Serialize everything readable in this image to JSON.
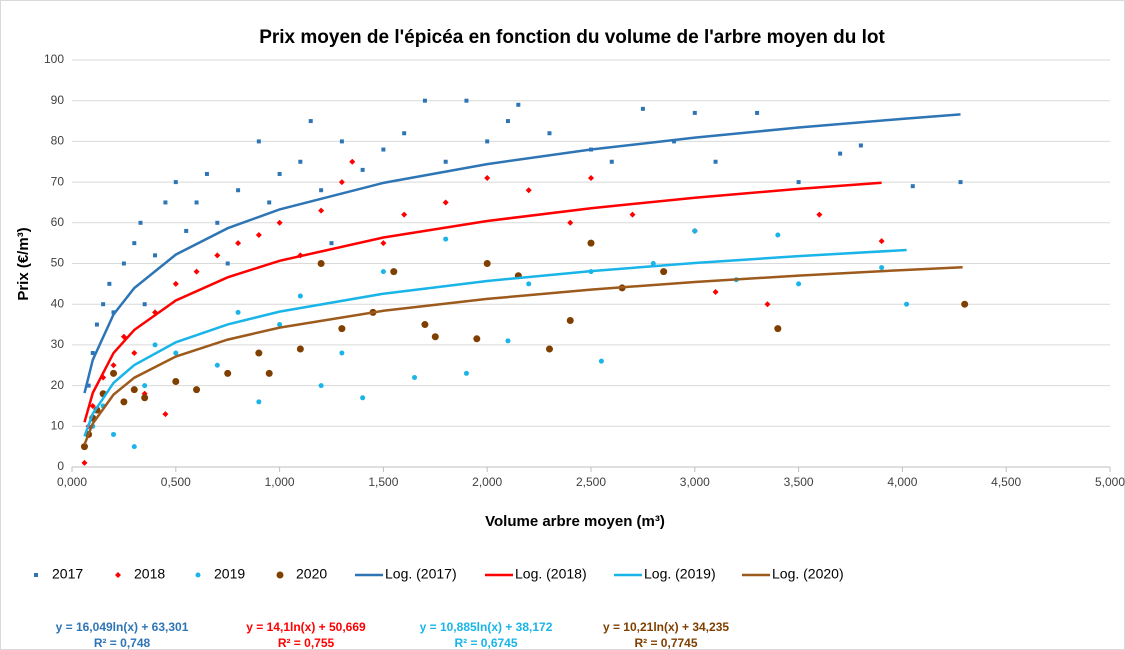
{
  "chart_data": {
    "type": "scatter",
    "title": "Prix moyen de l'épicéa en fonction du volume de l'arbre moyen du lot",
    "xlabel": "Volume arbre moyen (m³)",
    "ylabel": "Prix (€/m³)",
    "xlim": [
      0,
      5
    ],
    "xticks": [
      {
        "value": 0,
        "label": "0,000"
      },
      {
        "value": 0.5,
        "label": "0,500"
      },
      {
        "value": 1,
        "label": "1,000"
      },
      {
        "value": 1.5,
        "label": "1,500"
      },
      {
        "value": 2,
        "label": "2,000"
      },
      {
        "value": 2.5,
        "label": "2,500"
      },
      {
        "value": 3,
        "label": "3,000"
      },
      {
        "value": 3.5,
        "label": "3,500"
      },
      {
        "value": 4,
        "label": "4,000"
      },
      {
        "value": 4.5,
        "label": "4,500"
      },
      {
        "value": 5,
        "label": "5,000"
      }
    ],
    "ylim": [
      0,
      100
    ],
    "yticks": [
      0,
      10,
      20,
      30,
      40,
      50,
      60,
      70,
      80,
      90,
      100
    ],
    "grid": true,
    "legend": "bottom",
    "series": [
      {
        "name": "2017",
        "type": "scatter",
        "marker": "square",
        "color": "#2e75b6",
        "x": [
          0.08,
          0.1,
          0.12,
          0.15,
          0.18,
          0.2,
          0.25,
          0.3,
          0.33,
          0.4,
          0.45,
          0.5,
          0.55,
          0.6,
          0.65,
          0.7,
          0.8,
          0.9,
          0.95,
          1.0,
          1.1,
          1.15,
          1.2,
          1.3,
          1.4,
          1.5,
          1.6,
          1.7,
          1.8,
          1.9,
          2.0,
          2.1,
          2.15,
          2.3,
          2.5,
          2.6,
          2.75,
          2.9,
          3.0,
          3.1,
          3.3,
          3.5,
          3.7,
          3.8,
          4.05,
          4.28,
          1.25,
          0.35,
          0.75
        ],
        "values": [
          20,
          28,
          35,
          40,
          45,
          38,
          50,
          55,
          60,
          52,
          65,
          70,
          58,
          65,
          72,
          60,
          68,
          80,
          65,
          72,
          75,
          85,
          68,
          80,
          73,
          78,
          82,
          90,
          75,
          90,
          80,
          85,
          89,
          82,
          78,
          75,
          88,
          80,
          87,
          75,
          87,
          70,
          77,
          79,
          69,
          70,
          55,
          40,
          50
        ]
      },
      {
        "name": "2018",
        "type": "scatter",
        "marker": "diamond",
        "color": "#ff0000",
        "x": [
          0.06,
          0.08,
          0.1,
          0.15,
          0.2,
          0.25,
          0.3,
          0.35,
          0.4,
          0.45,
          0.5,
          0.6,
          0.7,
          0.8,
          0.9,
          1.0,
          1.1,
          1.2,
          1.3,
          1.35,
          1.5,
          1.6,
          1.8,
          2.0,
          2.2,
          2.4,
          2.5,
          2.7,
          3.0,
          3.1,
          3.35,
          3.6,
          3.9
        ],
        "values": [
          1,
          10,
          15,
          22,
          25,
          32,
          28,
          18,
          38,
          13,
          45,
          48,
          52,
          55,
          57,
          60,
          52,
          63,
          70,
          75,
          55,
          62,
          65,
          71,
          68,
          60,
          71,
          62,
          58,
          43,
          40,
          62,
          55.5
        ]
      },
      {
        "name": "2019",
        "type": "scatter",
        "marker": "circle",
        "color": "#19b4e8",
        "x": [
          0.06,
          0.1,
          0.15,
          0.2,
          0.3,
          0.35,
          0.4,
          0.5,
          0.7,
          0.8,
          0.9,
          1.0,
          1.1,
          1.2,
          1.3,
          1.4,
          1.5,
          1.65,
          1.8,
          1.9,
          2.1,
          2.2,
          2.5,
          2.55,
          2.8,
          3.0,
          3.2,
          3.4,
          3.5,
          4.02,
          3.9
        ],
        "values": [
          5,
          10,
          15,
          8,
          5,
          20,
          30,
          28,
          25,
          38,
          16,
          35,
          42,
          20,
          28,
          17,
          48,
          22,
          56,
          23,
          31,
          45,
          48,
          26,
          50,
          58,
          46,
          57,
          45,
          40,
          49
        ]
      },
      {
        "name": "2020",
        "type": "scatter",
        "marker": "big-circle",
        "color": "#7f3f00",
        "x": [
          0.06,
          0.08,
          0.1,
          0.12,
          0.15,
          0.2,
          0.25,
          0.3,
          0.35,
          0.5,
          0.6,
          0.75,
          0.9,
          0.95,
          1.1,
          1.2,
          1.3,
          1.45,
          1.55,
          1.7,
          1.75,
          1.95,
          2.0,
          2.15,
          2.3,
          2.4,
          2.5,
          2.65,
          2.85,
          3.4,
          4.3
        ],
        "values": [
          5,
          8,
          12,
          14,
          18,
          23,
          16,
          19,
          17,
          21,
          19,
          23,
          28,
          23,
          29,
          50,
          34,
          38,
          48,
          35,
          32,
          31.5,
          50,
          47,
          29,
          36,
          55,
          44,
          48,
          34,
          40
        ]
      },
      {
        "name": "Log. (2017)",
        "type": "line",
        "color": "#2e75b6",
        "x": [
          0.06,
          0.1,
          0.2,
          0.3,
          0.5,
          0.75,
          1,
          1.5,
          2,
          2.5,
          3,
          3.5,
          4,
          4.28
        ],
        "values": [
          18.15,
          26.34,
          37.48,
          43.98,
          52.18,
          58.68,
          63.3,
          69.8,
          74.42,
          78,
          80.94,
          83.41,
          85.54,
          86.64
        ]
      },
      {
        "name": "Log. (2018)",
        "type": "line",
        "color": "#ff0000",
        "x": [
          0.06,
          0.1,
          0.2,
          0.3,
          0.5,
          0.75,
          1,
          1.5,
          2,
          2.5,
          3,
          3.5,
          3.9
        ],
        "values": [
          11,
          18.2,
          27.98,
          33.69,
          40.9,
          46.61,
          50.67,
          56.38,
          60.44,
          63.59,
          66.17,
          68.34,
          69.86
        ]
      },
      {
        "name": "Log. (2019)",
        "type": "line",
        "color": "#19b4e8",
        "x": [
          0.06,
          0.1,
          0.2,
          0.3,
          0.5,
          0.75,
          1,
          1.5,
          2,
          2.5,
          3,
          3.5,
          4.02
        ],
        "values": [
          7.55,
          13.1,
          20.66,
          25.06,
          30.63,
          35.04,
          38.17,
          42.58,
          45.71,
          48.14,
          50.13,
          51.81,
          53.31
        ]
      },
      {
        "name": "Log. (2020)",
        "type": "line",
        "color": "#9c5a1c",
        "x": [
          0.06,
          0.1,
          0.2,
          0.3,
          0.5,
          0.75,
          1,
          1.5,
          2,
          2.5,
          3,
          3.5,
          4,
          4.29
        ],
        "values": [
          5.5,
          10.7,
          17.8,
          21.94,
          27.16,
          31.3,
          34.24,
          38.38,
          41.31,
          43.59,
          45.45,
          47.03,
          48.39,
          49.1
        ]
      }
    ],
    "annotations": [
      {
        "equation": "y = 16,049ln(x) + 63,301",
        "r2": "R² = 0,748",
        "color": "#2e75b6"
      },
      {
        "equation": "y = 14,1ln(x) + 50,669",
        "r2": "R² = 0,755",
        "color": "#ff0000"
      },
      {
        "equation": "y = 10,885ln(x) + 38,172",
        "r2": "R² = 0,6745",
        "color": "#19b4e8"
      },
      {
        "equation": "y = 10,21ln(x) + 34,235",
        "r2": "R² = 0,7745",
        "color": "#7f3f00"
      }
    ]
  }
}
